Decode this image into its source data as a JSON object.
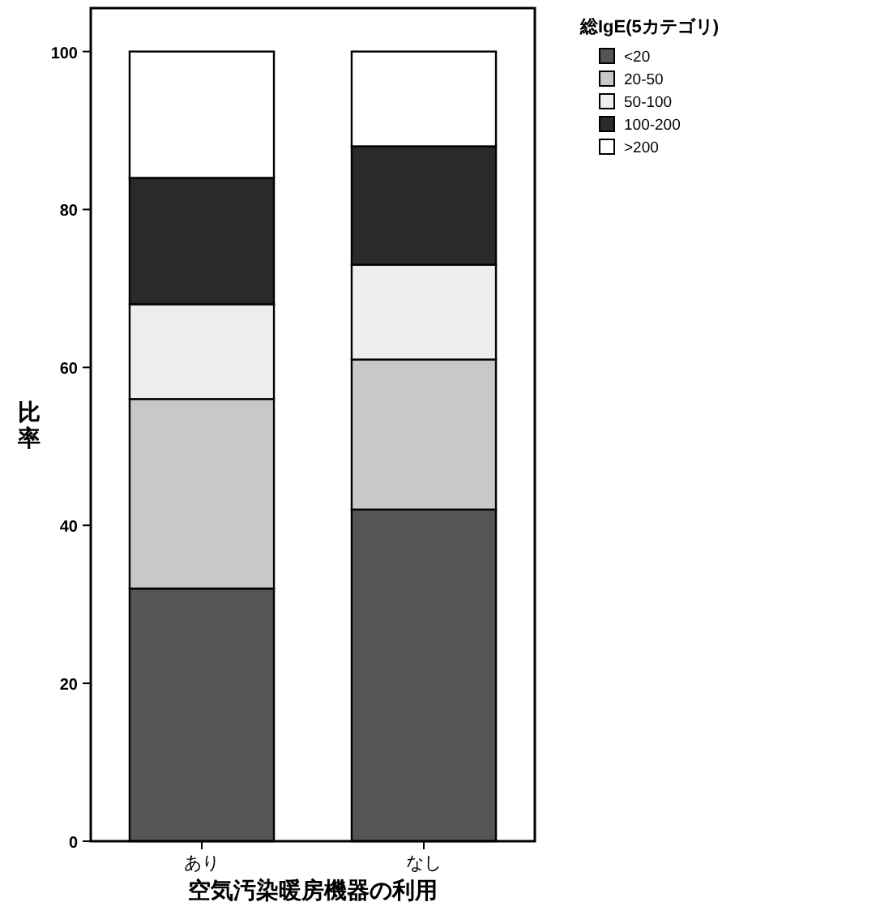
{
  "chart_data": {
    "type": "bar",
    "stacked": true,
    "categories": [
      "あり",
      "なし"
    ],
    "xlabel": "空気汚染暖房機器の利用",
    "ylabel": "比率",
    "legend_title": "総IgE(5カテゴリ)",
    "legend": "top right",
    "ylim": [
      0,
      105.5
    ],
    "yticks": [
      0,
      20,
      40,
      60,
      80,
      100
    ],
    "grid": false,
    "series": [
      {
        "name": "<20",
        "color": "#555555",
        "values": [
          32,
          42
        ]
      },
      {
        "name": "20-50",
        "color": "#c8c8c8",
        "values": [
          24,
          19
        ]
      },
      {
        "name": "50-100",
        "color": "#eeeeee",
        "values": [
          12,
          12
        ]
      },
      {
        "name": "100-200",
        "color": "#2a2a2a",
        "values": [
          16,
          15
        ]
      },
      {
        "name": ">200",
        "color": "#ffffff",
        "values": [
          16,
          12
        ]
      }
    ]
  }
}
